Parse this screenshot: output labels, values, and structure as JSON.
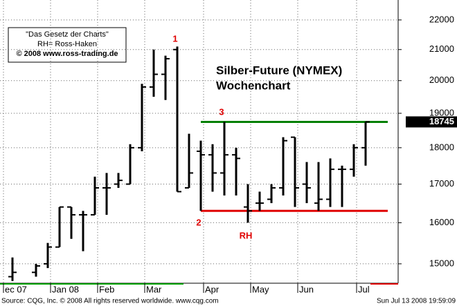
{
  "chart_data": {
    "type": "ohlc",
    "title": "Silber-Future (NYMEX)",
    "subtitle": "Wochenchart",
    "legend_box": [
      "\"Das Gesetz der Charts\"",
      "RH= Ross-Haken",
      "© 2008 www.ross-trading.de"
    ],
    "categories": [
      "ec 07",
      null,
      null,
      null,
      "Jan 08",
      null,
      null,
      null,
      "Feb",
      null,
      null,
      null,
      "Mar",
      null,
      null,
      null,
      null,
      "Apr",
      null,
      null,
      null,
      "May",
      null,
      null,
      null,
      "Jun",
      null,
      null,
      null,
      null,
      "Jul"
    ],
    "open": [
      14700,
      null,
      14800,
      15000,
      15400,
      16400,
      16200,
      16200,
      16900,
      17000,
      17000,
      18000,
      19800,
      20200,
      21000,
      16900,
      17900,
      17800,
      17300,
      17800,
      16400,
      16500,
      16600,
      16900,
      18300,
      17000,
      16500,
      16600,
      17400,
      17400,
      18000
    ],
    "high": [
      15150,
      null,
      15000,
      15500,
      16400,
      16400,
      16300,
      17200,
      17300,
      17300,
      18100,
      19900,
      21000,
      20800,
      21100,
      18400,
      18200,
      18100,
      18745,
      18000,
      17000,
      16800,
      17000,
      18300,
      18300,
      17600,
      17600,
      17700,
      17500,
      18100,
      18745
    ],
    "low": [
      14600,
      null,
      14700,
      14900,
      15400,
      15600,
      15300,
      16200,
      16200,
      16900,
      17000,
      17900,
      19500,
      19400,
      16800,
      16900,
      16300,
      16800,
      16700,
      16700,
      16000,
      16300,
      16500,
      16700,
      16400,
      16500,
      16300,
      16400,
      16400,
      17200,
      17500
    ],
    "close": [
      14800,
      null,
      14950,
      15400,
      16400,
      16200,
      16200,
      16900,
      16900,
      17100,
      18000,
      19800,
      20200,
      20700,
      16800,
      17300,
      17800,
      17300,
      17800,
      17700,
      16300,
      16500,
      16900,
      18200,
      16900,
      16900,
      16600,
      17400,
      17400,
      18000,
      18745
    ],
    "color": "#000000",
    "ylim": [
      14550,
      22700
    ],
    "yticks": [
      15000,
      16000,
      17000,
      18000,
      19000,
      20000,
      21000,
      22000
    ],
    "log_scale": true,
    "grid": true,
    "levels": [
      {
        "value": 18745,
        "color": "#008000"
      },
      {
        "value": 16300,
        "color": "#e00000"
      }
    ],
    "annotations": [
      "1",
      "2",
      "3",
      "RH"
    ],
    "source": "Source: CQG, Inc. © 2008 All rights reserved worldwide. www.cqg.com",
    "timestamp": "Sun Jul 13 2008 19:59:09"
  }
}
